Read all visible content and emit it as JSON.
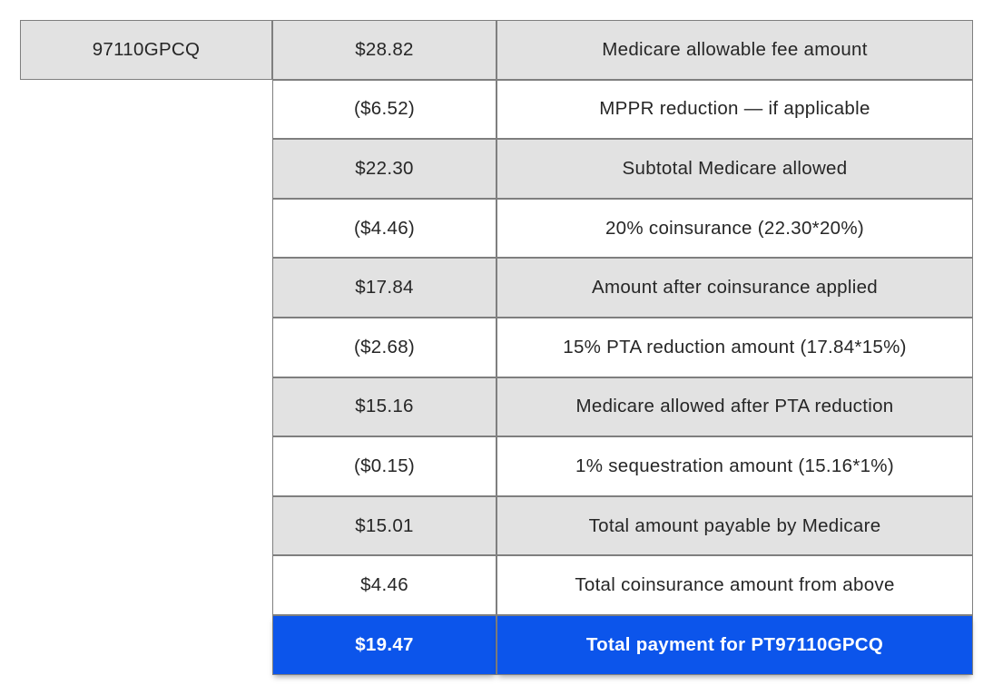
{
  "table": {
    "code_cell": "97110GPCQ",
    "colors": {
      "shaded_bg": "#e2e2e2",
      "border": "#7f7f7f",
      "text": "#262626",
      "highlight_bg": "#0c55eb",
      "highlight_text": "#ffffff"
    },
    "rows": [
      {
        "amount": "$28.82",
        "description": "Medicare allowable fee amount",
        "style": "shaded"
      },
      {
        "amount": "($6.52)",
        "description": "MPPR reduction — if applicable",
        "style": "plain"
      },
      {
        "amount": "$22.30",
        "description": "Subtotal Medicare allowed",
        "style": "shaded"
      },
      {
        "amount": "($4.46)",
        "description": "20% coinsurance (22.30*20%)",
        "style": "plain"
      },
      {
        "amount": "$17.84",
        "description": "Amount after coinsurance applied",
        "style": "shaded"
      },
      {
        "amount": "($2.68)",
        "description": "15% PTA reduction amount (17.84*15%)",
        "style": "plain"
      },
      {
        "amount": "$15.16",
        "description": "Medicare allowed after PTA reduction",
        "style": "shaded"
      },
      {
        "amount": "($0.15)",
        "description": "1% sequestration amount (15.16*1%)",
        "style": "plain"
      },
      {
        "amount": "$15.01",
        "description": "Total amount payable by Medicare",
        "style": "shaded"
      },
      {
        "amount": "$4.46",
        "description": "Total coinsurance amount from above",
        "style": "plain"
      },
      {
        "amount": "$19.47",
        "description": "Total payment for PT97110GPCQ",
        "style": "highlight"
      }
    ]
  },
  "chart_data": {
    "type": "table",
    "columns": [
      "code",
      "amount",
      "description"
    ],
    "rows": [
      [
        "97110GPCQ",
        "$28.82",
        "Medicare allowable fee amount"
      ],
      [
        "",
        "($6.52)",
        "MPPR reduction — if applicable"
      ],
      [
        "",
        "$22.30",
        "Subtotal Medicare allowed"
      ],
      [
        "",
        "($4.46)",
        "20% coinsurance (22.30*20%)"
      ],
      [
        "",
        "$17.84",
        "Amount after coinsurance applied"
      ],
      [
        "",
        "($2.68)",
        "15% PTA reduction amount (17.84*15%)"
      ],
      [
        "",
        "$15.16",
        "Medicare allowed after PTA reduction"
      ],
      [
        "",
        "($0.15)",
        "1% sequestration amount (15.16*1%)"
      ],
      [
        "",
        "$15.01",
        "Total amount payable by Medicare"
      ],
      [
        "",
        "$4.46",
        "Total coinsurance amount from above"
      ],
      [
        "",
        "$19.47",
        "Total payment for PT97110GPCQ"
      ]
    ],
    "values": [
      28.82,
      -6.52,
      22.3,
      -4.46,
      17.84,
      -2.68,
      15.16,
      -0.15,
      15.01,
      4.46,
      19.47
    ],
    "layout_hints": {
      "shaded_row_indices": [
        0,
        2,
        4,
        6,
        8
      ],
      "highlight_row_index": 10,
      "code_cell_rows": [
        0
      ]
    }
  }
}
